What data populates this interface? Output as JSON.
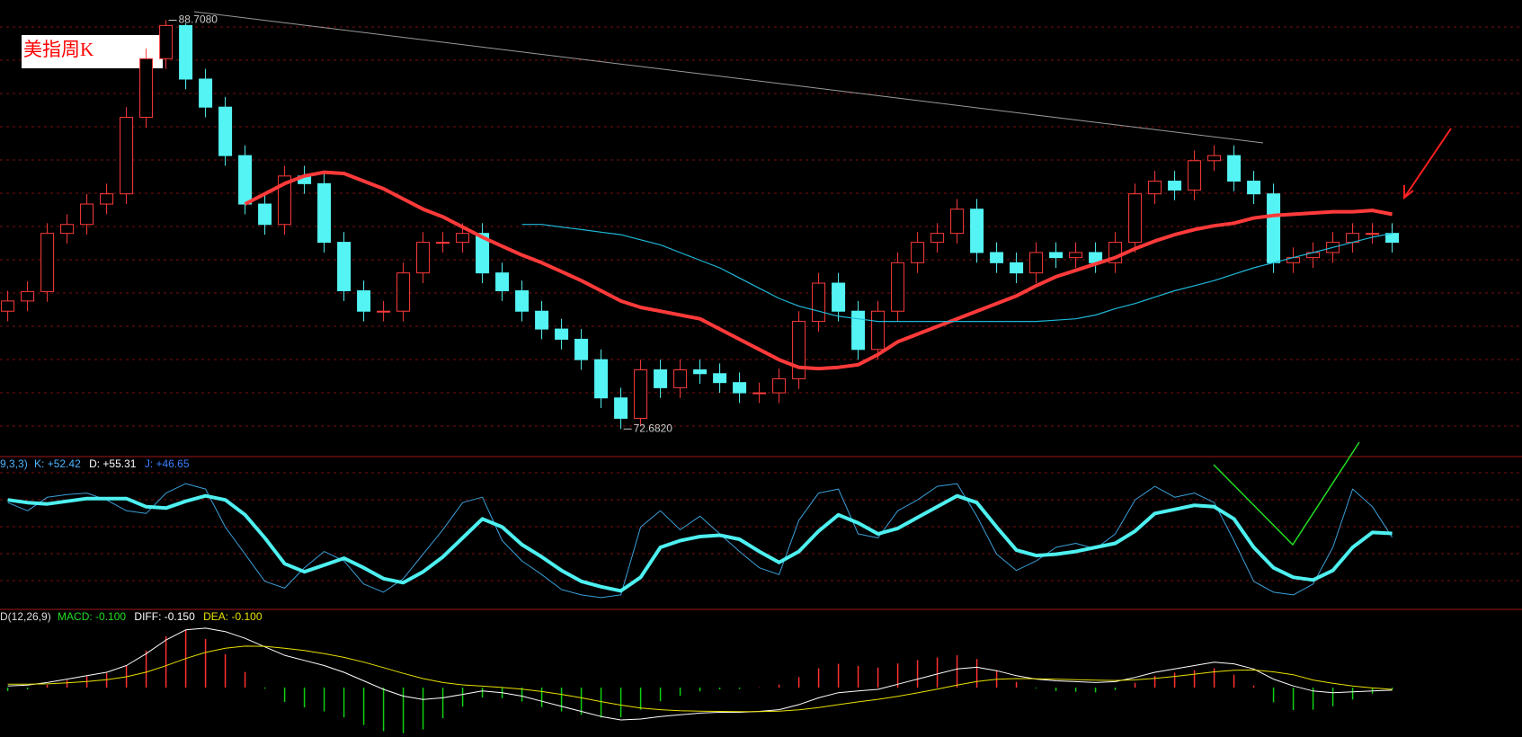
{
  "chart_data": [
    {
      "type": "candlestick",
      "title": "美指周K",
      "high_label": "88.7080",
      "low_label": "72.6820",
      "up_color": "#ff3b3b",
      "down_color": "#54f4f4",
      "ylim": [
        71.6,
        89.5
      ],
      "open": [
        77.3,
        77.7,
        78.07,
        80.35,
        80.7,
        81.5,
        81.9,
        84.9,
        87.2,
        88.5,
        86.4,
        85.3,
        83.4,
        81.5,
        80.7,
        82.6,
        82.3,
        80.0,
        78.1,
        77.3,
        77.3,
        78.8,
        80.0,
        80.0,
        80.35,
        78.8,
        78.1,
        77.3,
        76.6,
        76.2,
        75.4,
        73.9,
        73.1,
        75.0,
        74.3,
        75.0,
        74.85,
        74.5,
        74.1,
        74.1,
        74.65,
        76.9,
        78.4,
        77.3,
        75.8,
        77.3,
        79.2,
        80.0,
        80.35,
        81.3,
        79.6,
        79.2,
        78.8,
        79.6,
        79.4,
        79.6,
        79.2,
        80.0,
        81.9,
        82.4,
        82.05,
        83.2,
        83.4,
        82.4,
        81.9,
        79.2,
        79.4,
        79.6,
        80.0,
        80.35,
        80.35
      ],
      "high": [
        78.1,
        78.47,
        80.75,
        81.1,
        81.9,
        82.3,
        85.3,
        87.6,
        88.708,
        88.6,
        86.8,
        85.7,
        83.8,
        81.9,
        83.0,
        83.0,
        82.7,
        80.4,
        78.5,
        77.7,
        79.2,
        80.4,
        80.4,
        80.75,
        80.75,
        79.2,
        78.5,
        77.7,
        77.0,
        76.6,
        75.8,
        74.3,
        75.4,
        75.4,
        75.4,
        75.4,
        75.25,
        74.9,
        74.5,
        75.05,
        77.3,
        78.8,
        78.8,
        77.7,
        77.7,
        79.6,
        80.4,
        80.75,
        81.7,
        81.7,
        80.0,
        79.6,
        80.0,
        80.0,
        80.0,
        80.0,
        80.4,
        82.3,
        82.8,
        82.8,
        83.6,
        83.8,
        83.8,
        82.8,
        82.3,
        79.8,
        80.0,
        80.4,
        80.75,
        80.75,
        80.75
      ],
      "low": [
        76.9,
        77.3,
        77.67,
        79.95,
        80.3,
        81.1,
        81.5,
        84.5,
        86.8,
        86.0,
        84.9,
        83.0,
        81.1,
        80.3,
        80.3,
        81.9,
        79.6,
        77.7,
        76.9,
        76.9,
        76.9,
        78.4,
        79.6,
        79.6,
        78.4,
        77.7,
        76.9,
        76.2,
        75.8,
        75.0,
        73.5,
        72.682,
        72.8,
        73.9,
        73.9,
        74.45,
        74.1,
        73.7,
        73.7,
        73.7,
        74.25,
        76.5,
        76.9,
        75.4,
        75.4,
        76.9,
        78.8,
        79.6,
        79.95,
        79.2,
        78.8,
        78.4,
        78.4,
        79.0,
        79.0,
        78.8,
        78.8,
        79.6,
        81.5,
        81.65,
        81.65,
        82.8,
        82.0,
        81.5,
        78.8,
        78.8,
        79.0,
        79.2,
        79.6,
        79.95,
        79.6
      ],
      "close": [
        77.7,
        78.07,
        80.35,
        80.7,
        81.5,
        81.9,
        84.9,
        87.2,
        88.5,
        86.4,
        85.3,
        83.4,
        81.5,
        80.7,
        82.6,
        82.3,
        80.0,
        78.1,
        77.3,
        77.3,
        78.8,
        80.0,
        80.0,
        80.35,
        78.8,
        78.1,
        77.3,
        76.6,
        76.2,
        75.4,
        73.9,
        73.1,
        75.0,
        74.3,
        75.0,
        74.85,
        74.5,
        74.1,
        74.1,
        74.65,
        76.9,
        78.4,
        77.3,
        75.8,
        77.3,
        79.2,
        80.0,
        80.35,
        81.3,
        79.6,
        79.2,
        78.8,
        79.6,
        79.4,
        79.6,
        79.2,
        80.0,
        81.9,
        82.4,
        82.05,
        83.2,
        83.4,
        82.4,
        81.9,
        79.2,
        79.4,
        79.6,
        80.0,
        80.35,
        80.35,
        80.0
      ],
      "series": [
        {
          "color": "#ff3a3a",
          "width": 4,
          "values": [
            null,
            null,
            null,
            null,
            null,
            null,
            null,
            null,
            null,
            null,
            null,
            null,
            81.5,
            81.9,
            82.3,
            82.6,
            82.75,
            82.7,
            82.4,
            82.1,
            81.7,
            81.3,
            81.0,
            80.6,
            80.2,
            79.85,
            79.5,
            79.2,
            78.85,
            78.5,
            78.1,
            77.7,
            77.45,
            77.3,
            77.15,
            77.0,
            76.6,
            76.2,
            75.8,
            75.4,
            75.1,
            75.05,
            75.1,
            75.2,
            75.6,
            76.1,
            76.4,
            76.7,
            77.0,
            77.3,
            77.6,
            77.9,
            78.3,
            78.65,
            78.9,
            79.15,
            79.4,
            79.75,
            80.05,
            80.3,
            80.5,
            80.65,
            80.75,
            80.95,
            81.05,
            81.1,
            81.15,
            81.2,
            81.2,
            81.25,
            81.1
          ]
        },
        {
          "color": "#1fb8d8",
          "width": 1.2,
          "values": [
            null,
            null,
            null,
            null,
            null,
            null,
            null,
            null,
            null,
            null,
            null,
            null,
            null,
            null,
            null,
            null,
            null,
            null,
            null,
            null,
            null,
            null,
            null,
            null,
            null,
            null,
            80.7,
            80.7,
            80.6,
            80.5,
            80.4,
            80.3,
            80.1,
            79.9,
            79.6,
            79.3,
            79.0,
            78.6,
            78.2,
            77.8,
            77.5,
            77.3,
            77.1,
            77.0,
            76.9,
            76.9,
            76.9,
            76.9,
            76.9,
            76.9,
            76.9,
            76.9,
            76.9,
            76.95,
            77.0,
            77.15,
            77.4,
            77.6,
            77.85,
            78.1,
            78.3,
            78.5,
            78.75,
            79.0,
            79.2,
            79.4,
            79.6,
            79.8,
            80.0,
            80.2,
            80.35
          ]
        }
      ]
    },
    {
      "type": "line",
      "params": "9,3,3)",
      "k_label": "K: +52.42",
      "d_label": "D: +55.31",
      "j_label": "J: +46.65",
      "ylim": [
        0,
        100
      ],
      "series": [
        {
          "color": "#3a9fd8",
          "width": 1,
          "values": [
            78,
            72,
            82,
            84,
            85,
            80,
            72,
            70,
            85,
            92,
            88,
            60,
            40,
            20,
            15,
            30,
            42,
            35,
            18,
            12,
            22,
            40,
            58,
            78,
            82,
            50,
            35,
            25,
            14,
            10,
            8,
            10,
            60,
            72,
            58,
            68,
            55,
            42,
            30,
            25,
            65,
            85,
            88,
            55,
            52,
            72,
            80,
            90,
            92,
            68,
            40,
            28,
            35,
            45,
            48,
            44,
            55,
            80,
            90,
            82,
            85,
            78,
            50,
            20,
            12,
            10,
            18,
            45,
            88,
            75,
            52.42
          ]
        },
        {
          "color": "#4ef0f0",
          "width": 4,
          "values": [
            80,
            78,
            77,
            79,
            81,
            81,
            81,
            75,
            74,
            79,
            83,
            80,
            69,
            52,
            33,
            27,
            32,
            37,
            30,
            22,
            19,
            27,
            38,
            52,
            66,
            60,
            47,
            38,
            28,
            20,
            16,
            13,
            23,
            45,
            50,
            53,
            54,
            51,
            42,
            34,
            42,
            57,
            69,
            63,
            55,
            59,
            67,
            75,
            83,
            78,
            60,
            43,
            39,
            40,
            42,
            45,
            48,
            57,
            70,
            73,
            76,
            75,
            66,
            45,
            30,
            23,
            21,
            28,
            45,
            56,
            55.31
          ]
        }
      ]
    },
    {
      "type": "bar",
      "params": "D(12,26,9)",
      "macd_label": "MACD: -0.100",
      "diff_label": "DIFF: -0.150",
      "dea_label": "DEA: -0.100",
      "ylim": [
        -2.8,
        3.6
      ],
      "up_color": "#ff3030",
      "down_color": "#10d010",
      "values": [
        -0.2,
        -0.1,
        0.16,
        0.44,
        0.68,
        0.86,
        1.32,
        2.18,
        3.02,
        3.38,
        2.86,
        1.96,
        0.92,
        -0.06,
        -0.84,
        -1.16,
        -1.4,
        -1.76,
        -2.2,
        -2.56,
        -2.68,
        -2.46,
        -1.8,
        -1.12,
        -0.58,
        -0.62,
        -0.82,
        -1.14,
        -1.4,
        -1.6,
        -1.76,
        -1.74,
        -1.3,
        -0.8,
        -0.48,
        -0.22,
        -0.1,
        -0.08,
        0.02,
        0.18,
        0.62,
        1.14,
        1.4,
        1.28,
        1.18,
        1.42,
        1.62,
        1.78,
        1.9,
        1.68,
        1.02,
        0.34,
        -0.04,
        -0.2,
        -0.24,
        -0.28,
        -0.14,
        0.28,
        0.7,
        0.88,
        1.02,
        1.14,
        0.76,
        0.12,
        -0.86,
        -1.32,
        -1.3,
        -1.1,
        -0.7,
        -0.36,
        -0.1
      ],
      "series": [
        {
          "color": "#ffffff",
          "width": 1,
          "values": [
            0.1,
            0.15,
            0.3,
            0.5,
            0.7,
            0.9,
            1.3,
            2.0,
            2.8,
            3.4,
            3.5,
            3.3,
            2.9,
            2.4,
            1.9,
            1.6,
            1.3,
            0.9,
            0.4,
            -0.1,
            -0.5,
            -0.7,
            -0.6,
            -0.4,
            -0.2,
            -0.3,
            -0.5,
            -0.8,
            -1.1,
            -1.4,
            -1.7,
            -1.9,
            -1.85,
            -1.7,
            -1.6,
            -1.5,
            -1.45,
            -1.45,
            -1.4,
            -1.3,
            -1.0,
            -0.6,
            -0.3,
            -0.2,
            -0.1,
            0.2,
            0.5,
            0.8,
            1.1,
            1.2,
            1.0,
            0.7,
            0.5,
            0.4,
            0.35,
            0.3,
            0.35,
            0.6,
            0.9,
            1.1,
            1.3,
            1.5,
            1.4,
            1.1,
            0.5,
            0.1,
            -0.2,
            -0.3,
            -0.25,
            -0.2,
            -0.15
          ]
        },
        {
          "color": "#e8e000",
          "width": 1,
          "values": [
            0.2,
            0.2,
            0.22,
            0.28,
            0.36,
            0.47,
            0.64,
            0.91,
            1.29,
            1.71,
            2.07,
            2.32,
            2.44,
            2.43,
            2.32,
            2.18,
            2.0,
            1.78,
            1.5,
            1.18,
            0.84,
            0.53,
            0.3,
            0.16,
            0.09,
            0.01,
            -0.09,
            -0.23,
            -0.4,
            -0.6,
            -0.82,
            -1.03,
            -1.2,
            -1.3,
            -1.36,
            -1.39,
            -1.4,
            -1.41,
            -1.41,
            -1.39,
            -1.31,
            -1.17,
            -1.0,
            -0.84,
            -0.69,
            -0.51,
            -0.31,
            -0.09,
            0.15,
            0.36,
            0.49,
            0.53,
            0.52,
            0.5,
            0.47,
            0.44,
            0.42,
            0.46,
            0.55,
            0.66,
            0.79,
            0.93,
            1.02,
            1.04,
            0.93,
            0.76,
            0.45,
            0.25,
            0.1,
            -0.02,
            -0.1
          ]
        }
      ]
    }
  ]
}
